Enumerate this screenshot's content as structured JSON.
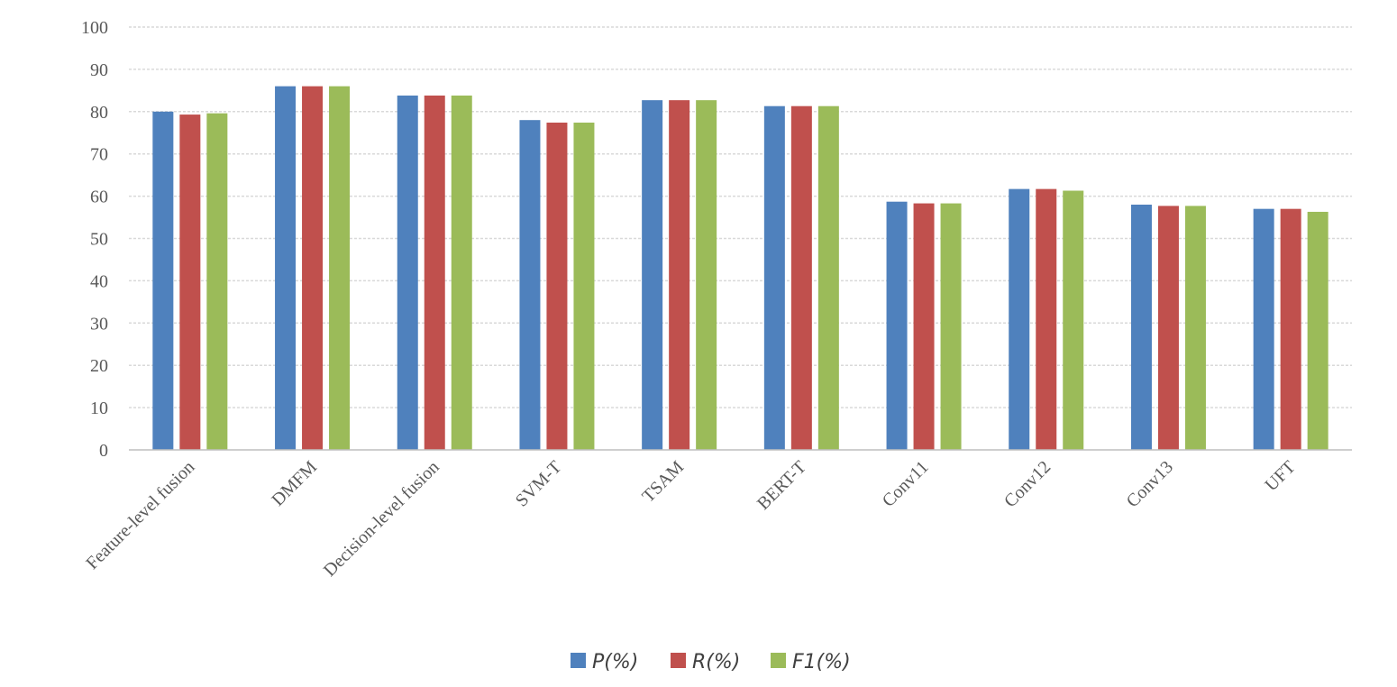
{
  "chart_data": {
    "type": "bar",
    "title": "",
    "xlabel": "",
    "ylabel": "",
    "ylim": [
      0,
      100
    ],
    "yticks": [
      0,
      10,
      20,
      30,
      40,
      50,
      60,
      70,
      80,
      90,
      100
    ],
    "grid": true,
    "legend_position": "bottom",
    "categories": [
      "Feature-level fusion",
      "DMFM",
      "Decision-level fusion",
      "SVM-T",
      "TSAM",
      "BERT-T",
      "Conv11",
      "Conv12",
      "Conv13",
      "UFT"
    ],
    "series": [
      {
        "name": "P(%)",
        "color": "#4f81bd",
        "values": [
          80.0,
          86.0,
          83.8,
          78.0,
          82.7,
          81.3,
          58.7,
          61.7,
          58.0,
          57.0
        ]
      },
      {
        "name": "R(%)",
        "color": "#c0504d",
        "values": [
          79.3,
          86.0,
          83.8,
          77.4,
          82.7,
          81.3,
          58.3,
          61.7,
          57.7,
          57.0
        ]
      },
      {
        "name": "F1(%)",
        "color": "#9bbb59",
        "values": [
          79.6,
          86.0,
          83.8,
          77.4,
          82.7,
          81.3,
          58.3,
          61.3,
          57.7,
          56.3
        ]
      }
    ]
  }
}
